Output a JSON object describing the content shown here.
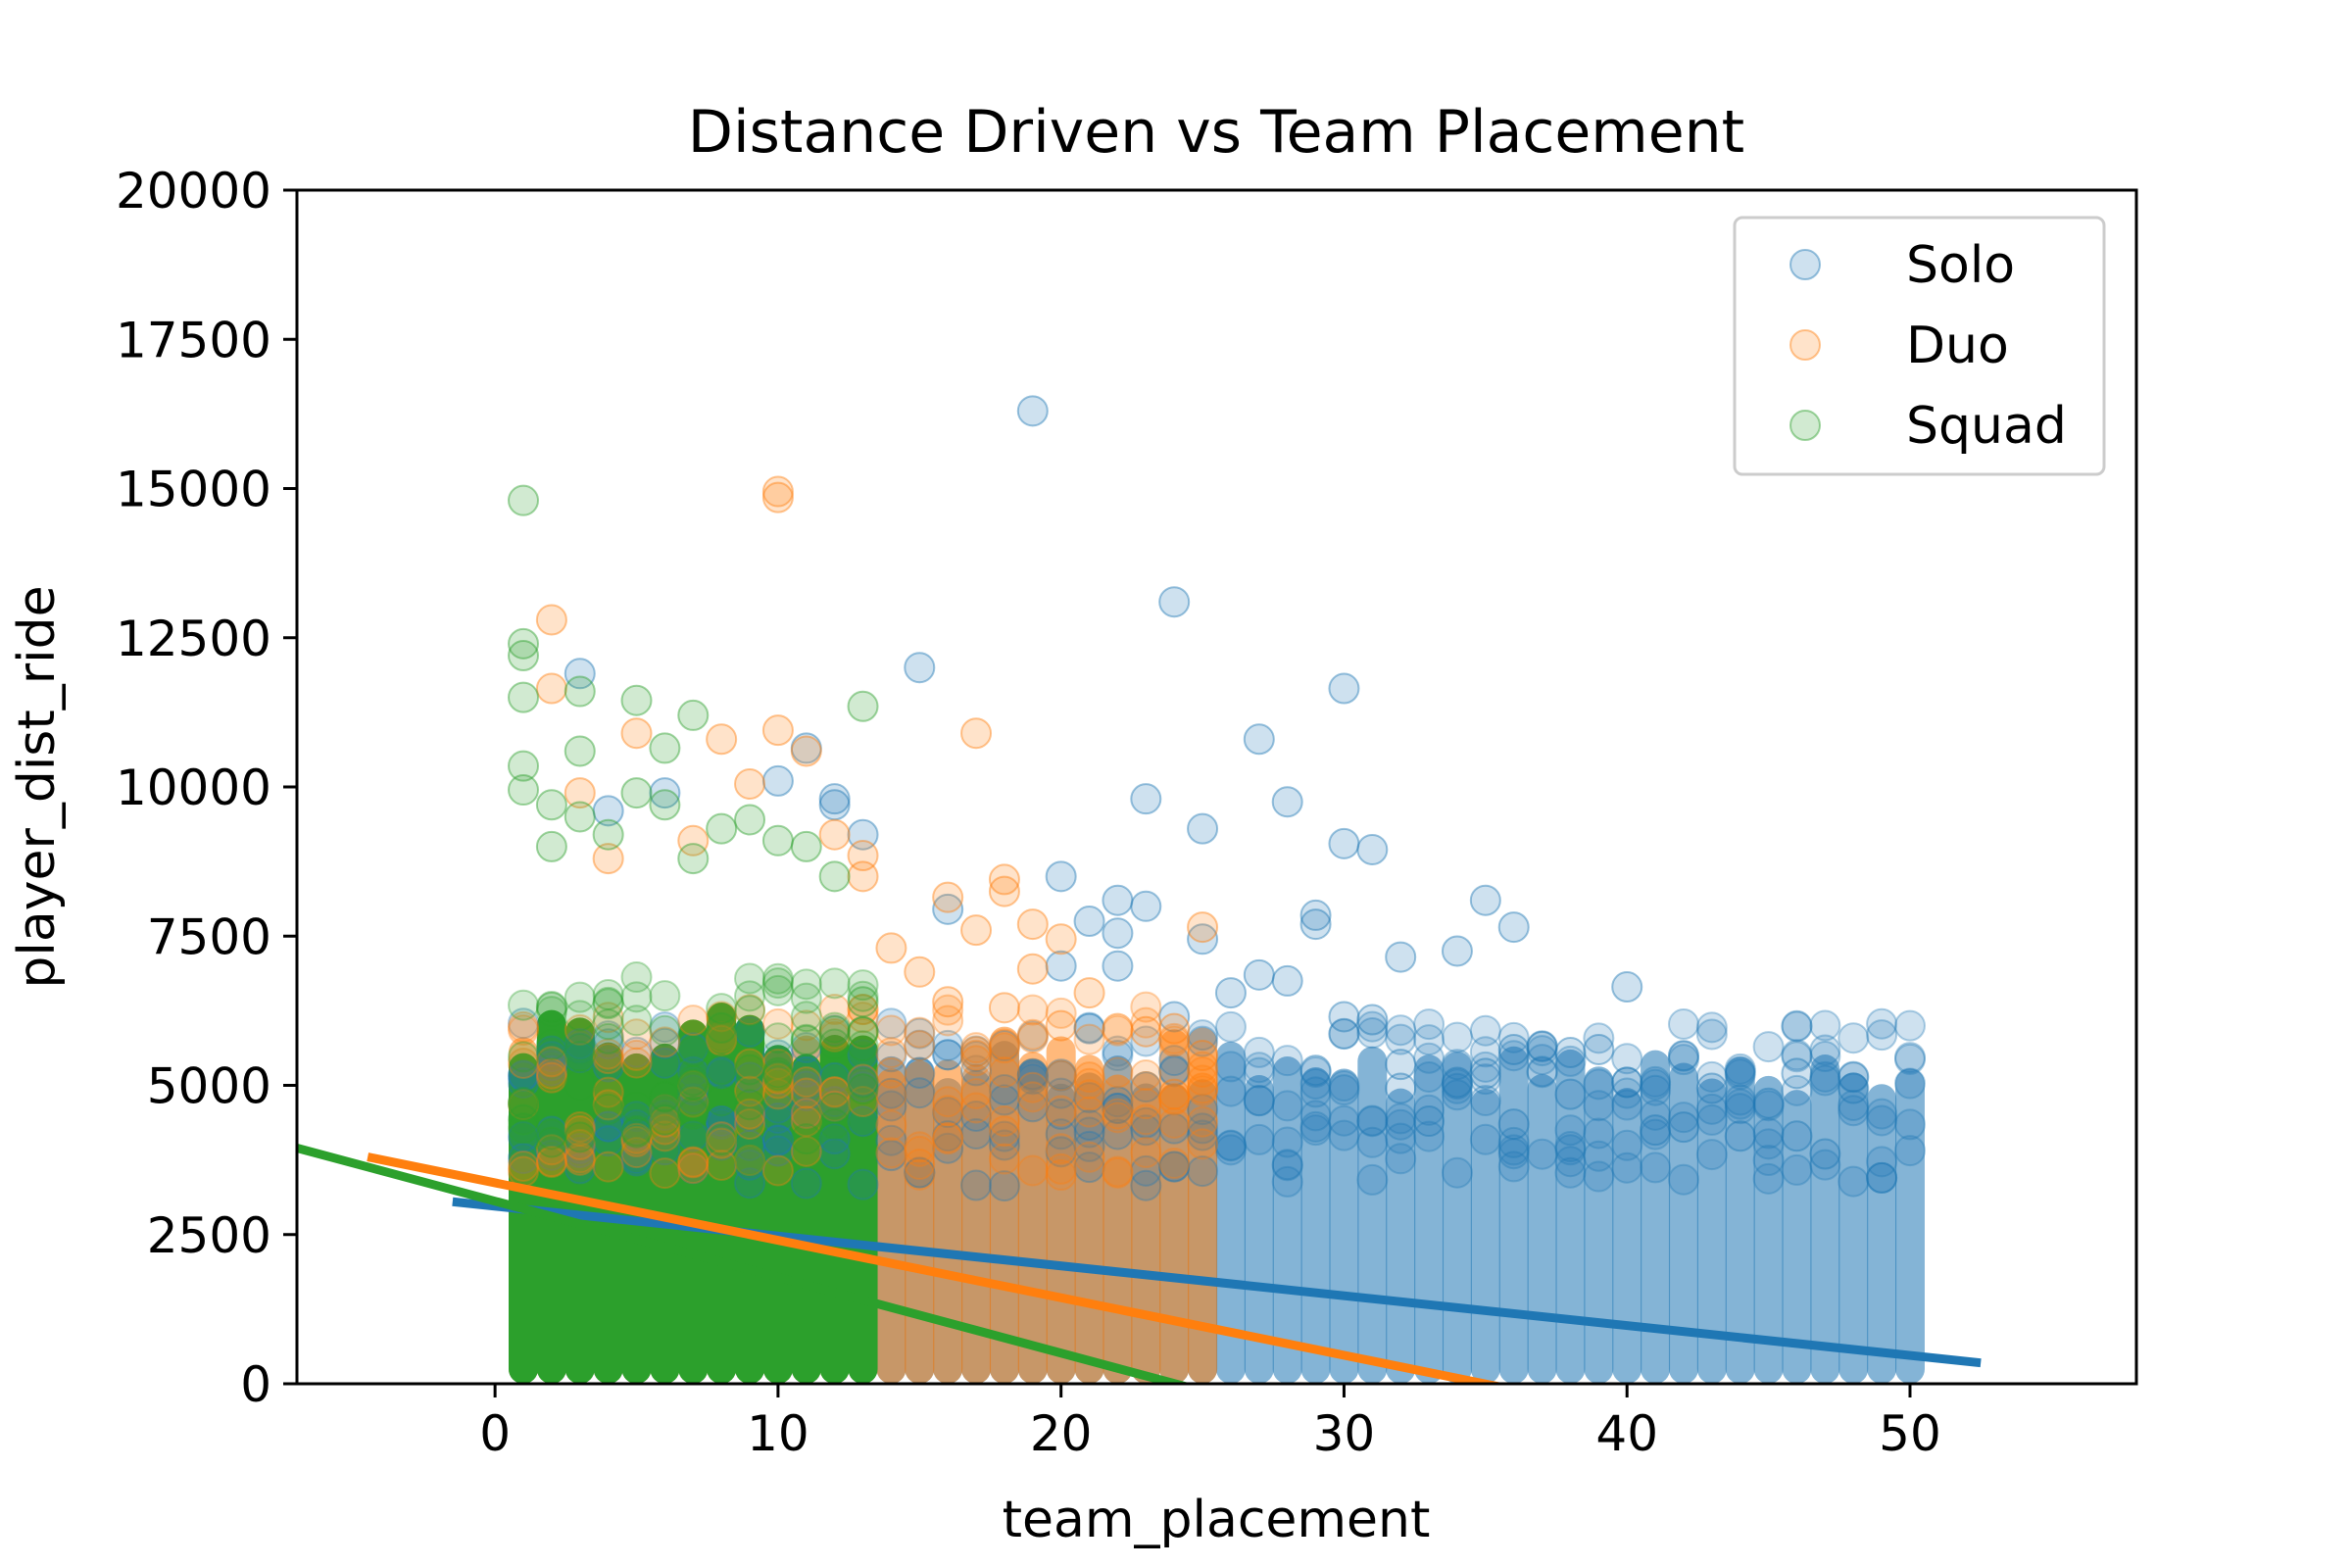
{
  "chart_data": {
    "type": "scatter",
    "title": "Distance Driven vs Team Placement",
    "xlabel": "team_placement",
    "ylabel": "player_dist_ride",
    "xlim": [
      -7,
      58
    ],
    "ylim": [
      0,
      20000
    ],
    "xticks": [
      0,
      10,
      20,
      30,
      40,
      50
    ],
    "yticks": [
      0,
      2500,
      5000,
      7500,
      10000,
      12500,
      15000,
      17500,
      20000
    ],
    "legend_position": "upper-right",
    "series": [
      {
        "name": "Solo",
        "color": "#1f77b4",
        "x_range": [
          1,
          50
        ],
        "dense_max": 5500,
        "points": [
          [
            19,
            16300
          ],
          [
            24,
            13100
          ],
          [
            15,
            12000
          ],
          [
            30,
            11650
          ],
          [
            27,
            10800
          ],
          [
            3,
            11900
          ],
          [
            28,
            9750
          ],
          [
            25,
            9300
          ],
          [
            23,
            9800
          ],
          [
            30,
            9050
          ],
          [
            31,
            8950
          ],
          [
            16,
            7950
          ],
          [
            20,
            8500
          ],
          [
            21,
            7750
          ],
          [
            22,
            8100
          ],
          [
            23,
            8000
          ],
          [
            29,
            7850
          ],
          [
            29,
            7700
          ],
          [
            35,
            8100
          ],
          [
            36,
            7650
          ],
          [
            32,
            7150
          ],
          [
            34,
            7250
          ],
          [
            40,
            6650
          ],
          [
            31,
            6100
          ],
          [
            26,
            6550
          ],
          [
            27,
            6850
          ],
          [
            28,
            6750
          ],
          [
            36,
            5600
          ],
          [
            37,
            5650
          ],
          [
            38,
            5550
          ],
          [
            39,
            5600
          ],
          [
            32,
            5350
          ],
          [
            34,
            5050
          ],
          [
            35,
            5200
          ],
          [
            40,
            5050
          ],
          [
            42,
            4300
          ],
          [
            43,
            4950
          ],
          [
            45,
            4700
          ],
          [
            46,
            5200
          ],
          [
            48,
            4950
          ],
          [
            46,
            4150
          ],
          [
            47,
            3850
          ],
          [
            49,
            3450
          ],
          [
            44,
            4150
          ],
          [
            41,
            4250
          ],
          [
            38,
            4850
          ],
          [
            36,
            4350
          ],
          [
            32,
            4950
          ],
          [
            33,
            4400
          ],
          [
            12,
            9800
          ],
          [
            11,
            10650
          ],
          [
            13,
            9200
          ],
          [
            12,
            9700
          ],
          [
            6,
            9900
          ],
          [
            4,
            9600
          ],
          [
            10,
            10100
          ],
          [
            22,
            7550
          ],
          [
            25,
            7450
          ],
          [
            20,
            7000
          ],
          [
            22,
            7000
          ],
          [
            30,
            6150
          ],
          [
            29,
            5250
          ],
          [
            24,
            6150
          ],
          [
            21,
            5950
          ]
        ]
      },
      {
        "name": "Duo",
        "color": "#ff7f0e",
        "x_range": [
          1,
          25
        ],
        "dense_max": 5800,
        "points": [
          [
            10,
            14950
          ],
          [
            10,
            14850
          ],
          [
            2,
            12800
          ],
          [
            17,
            10900
          ],
          [
            2,
            11650
          ],
          [
            5,
            10900
          ],
          [
            8,
            10800
          ],
          [
            10,
            10950
          ],
          [
            11,
            10600
          ],
          [
            9,
            10050
          ],
          [
            12,
            9200
          ],
          [
            13,
            8850
          ],
          [
            18,
            8450
          ],
          [
            16,
            8150
          ],
          [
            18,
            8250
          ],
          [
            25,
            7650
          ],
          [
            20,
            7450
          ],
          [
            17,
            7600
          ],
          [
            19,
            7700
          ],
          [
            14,
            7300
          ],
          [
            15,
            6900
          ],
          [
            19,
            6950
          ],
          [
            21,
            6550
          ],
          [
            22,
            5950
          ],
          [
            23,
            5900
          ],
          [
            24,
            5950
          ],
          [
            25,
            5500
          ],
          [
            16,
            6400
          ],
          [
            18,
            6300
          ],
          [
            20,
            6000
          ],
          [
            25,
            4950
          ],
          [
            24,
            4850
          ],
          [
            13,
            8500
          ],
          [
            4,
            8800
          ],
          [
            7,
            9100
          ],
          [
            3,
            9900
          ]
        ]
      },
      {
        "name": "Squad",
        "color": "#2ca02c",
        "x_range": [
          1,
          13
        ],
        "dense_max": 6200,
        "points": [
          [
            1,
            14800
          ],
          [
            1,
            12400
          ],
          [
            1,
            12200
          ],
          [
            1,
            11500
          ],
          [
            3,
            11600
          ],
          [
            5,
            11450
          ],
          [
            7,
            11200
          ],
          [
            13,
            11350
          ],
          [
            3,
            10600
          ],
          [
            6,
            10650
          ],
          [
            1,
            10350
          ],
          [
            1,
            9950
          ],
          [
            2,
            9700
          ],
          [
            3,
            9500
          ],
          [
            4,
            9200
          ],
          [
            5,
            9900
          ],
          [
            6,
            9700
          ],
          [
            8,
            9300
          ],
          [
            9,
            9450
          ],
          [
            10,
            9100
          ],
          [
            11,
            9000
          ],
          [
            12,
            8500
          ],
          [
            13,
            6400
          ],
          [
            13,
            5900
          ],
          [
            2,
            9000
          ],
          [
            7,
            8800
          ]
        ]
      }
    ],
    "trendlines": [
      {
        "name": "Solo",
        "color": "#1f77b4",
        "x": [
          -1.5,
          52.5
        ],
        "y": [
          3050,
          350
        ]
      },
      {
        "name": "Duo",
        "color": "#ff7f0e",
        "x": [
          -4.5,
          36
        ],
        "y": [
          3800,
          -100
        ]
      },
      {
        "name": "Squad",
        "color": "#2ca02c",
        "x": [
          -7,
          26
        ],
        "y": [
          3950,
          -250
        ]
      }
    ]
  }
}
